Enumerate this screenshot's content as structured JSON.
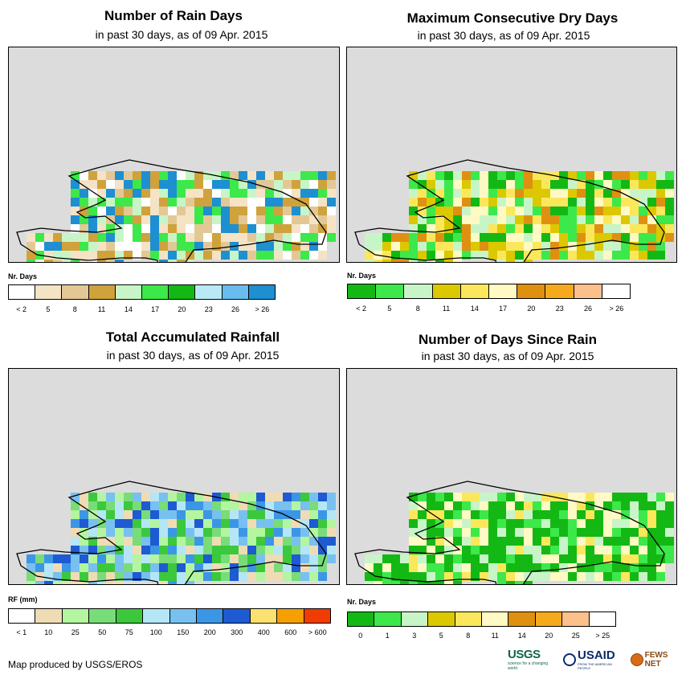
{
  "panels": [
    {
      "title": "Number of Rain Days",
      "subtitle": "in past 30 days, as of 09 Apr. 2015",
      "legend_title": "Nr. Days",
      "legend_colors": [
        "#ffffff",
        "#f5e3c6",
        "#e3c896",
        "#cfa23c",
        "#c8f5c8",
        "#3de84a",
        "#14b814",
        "#b9e9f7",
        "#6bbcee",
        "#1e8fd0"
      ],
      "legend_ticks": [
        "< 2",
        "5",
        "8",
        "11",
        "14",
        "17",
        "20",
        "23",
        "26",
        "> 26"
      ],
      "map_palette": [
        "#f5e3c6",
        "#e3c896",
        "#cfa23c",
        "#c8f5c8",
        "#3de84a",
        "#1e8fd0",
        "#ffffff"
      ]
    },
    {
      "title": "Maximum Consecutive Dry Days",
      "subtitle": "in past 30 days, as of 09 Apr. 2015",
      "legend_title": "Nr. Days",
      "legend_colors": [
        "#14b814",
        "#3de84a",
        "#c8f5c8",
        "#dcc800",
        "#fbe75c",
        "#fff9c4",
        "#e09010",
        "#f5aa1e",
        "#fbc08c",
        "#ffffff"
      ],
      "legend_ticks": [
        "< 2",
        "5",
        "8",
        "11",
        "14",
        "17",
        "20",
        "23",
        "26",
        "> 26"
      ],
      "map_palette": [
        "#dcc800",
        "#fbe75c",
        "#c8f5c8",
        "#3de84a",
        "#e09010",
        "#fff9c4",
        "#14b814"
      ]
    },
    {
      "title": "Total Accumulated Rainfall",
      "subtitle": "in past 30 days, as of 09 Apr. 2015",
      "legend_title": "RF (mm)",
      "legend_colors": [
        "#ffffff",
        "#f0dcb4",
        "#b4f5a0",
        "#78dc78",
        "#3cc83c",
        "#b4e6f5",
        "#78c0f0",
        "#3c96e6",
        "#1e5ad2",
        "#fbe170",
        "#f5a000",
        "#f03c00"
      ],
      "legend_ticks": [
        "< 1",
        "10",
        "25",
        "50",
        "75",
        "100",
        "150",
        "200",
        "300",
        "400",
        "600",
        "> 600"
      ],
      "map_palette": [
        "#b4f5a0",
        "#78dc78",
        "#3cc83c",
        "#b4e6f5",
        "#78c0f0",
        "#3c96e6",
        "#1e5ad2",
        "#f0dcb4"
      ]
    },
    {
      "title": "Number of Days Since Rain",
      "subtitle": "in past 30 days, as of 09 Apr. 2015",
      "legend_title": "Nr. Days",
      "legend_colors": [
        "#14b814",
        "#3de84a",
        "#c8f5c8",
        "#dcc800",
        "#fbe75c",
        "#fff9c4",
        "#e09010",
        "#f5aa1e",
        "#fbc08c",
        "#ffffff"
      ],
      "legend_ticks": [
        "0",
        "1",
        "3",
        "5",
        "8",
        "11",
        "14",
        "20",
        "25",
        "> 25"
      ],
      "map_palette": [
        "#14b814",
        "#14b814",
        "#14b814",
        "#3de84a",
        "#fbe75c",
        "#fff9c4",
        "#c8f5c8"
      ]
    }
  ],
  "footer": "Map produced by USGS/EROS",
  "logos": {
    "usgs": "USGS",
    "usgs_tagline": "science for a changing world",
    "usaid": "USAID",
    "usaid_tagline": "FROM THE AMERICAN PEOPLE",
    "fews": "FEWS NET"
  }
}
